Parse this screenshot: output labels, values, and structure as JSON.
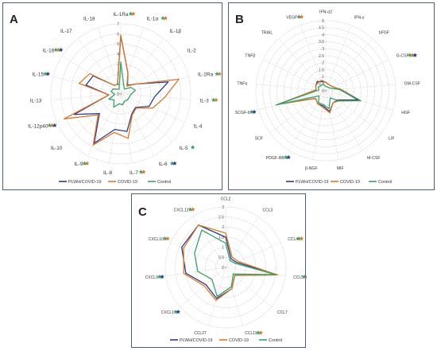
{
  "panels": [
    {
      "id": "A",
      "label": "A"
    },
    {
      "id": "B",
      "label": "B"
    },
    {
      "id": "C",
      "label": "C"
    }
  ],
  "colors": {
    "PLWH/COVID-19": "#2e3a87",
    "COVID-19": "#d77a2b",
    "Control": "#3aa06a",
    "grid": "#c8c8c8",
    "star_blue": "#1f3b8c",
    "star_orange": "#d77a2b",
    "star_green": "#3aa06a"
  },
  "chart_data": [
    {
      "type": "radar",
      "panel": "A",
      "categories": [
        "IL-1Ra",
        "IL-1α",
        "IL-1β",
        "IL-2",
        "IL-2Ra",
        "IL-3",
        "IL-4",
        "IL-5",
        "IL-6",
        "IL-7",
        "IL-8",
        "IL-9",
        "IL-10",
        "IL-12p40",
        "IL-13",
        "IL-15",
        "IL-16",
        "IL-17",
        "IL-18"
      ],
      "rticks": [
        "0",
        "1",
        "2",
        "3",
        "4",
        "5",
        "6",
        "7"
      ],
      "rlim": [
        0,
        7
      ],
      "series": [
        {
          "name": "PLWH/COVID-19",
          "values": [
            5.8,
            2.2,
            1.1,
            1.8,
            4.9,
            3.4,
            3.1,
            2.0,
            2.3,
            3.8,
            3.6,
            5.6,
            2.9,
            5.1,
            1.2,
            3.6,
            3.3,
            1.1,
            1.0
          ]
        },
        {
          "name": "COVID-19",
          "values": [
            5.9,
            2.2,
            1.0,
            1.8,
            6.0,
            4.4,
            3.5,
            2.1,
            2.4,
            4.5,
            3.9,
            5.8,
            3.1,
            6.2,
            1.2,
            4.3,
            3.7,
            1.1,
            1.0
          ]
        },
        {
          "name": "Control",
          "values": [
            3.2,
            0.9,
            0.6,
            1.2,
            1.5,
            1.0,
            0.9,
            0.9,
            0.8,
            1.1,
            1.0,
            1.5,
            0.9,
            1.3,
            0.6,
            1.0,
            0.9,
            0.6,
            0.5
          ]
        }
      ],
      "stars": [
        {
          "category": "IL-1Ra",
          "colors": [
            "star_green",
            "star_orange"
          ]
        },
        {
          "category": "IL-1α",
          "colors": [
            "star_green",
            "star_orange"
          ]
        },
        {
          "category": "IL-2Ra",
          "colors": [
            "star_green",
            "star_orange"
          ]
        },
        {
          "category": "IL-3",
          "colors": [
            "star_green",
            "star_orange"
          ]
        },
        {
          "category": "IL-5",
          "colors": [
            "star_green"
          ]
        },
        {
          "category": "IL-6",
          "colors": [
            "star_green",
            "star_blue"
          ]
        },
        {
          "category": "IL-7",
          "colors": [
            "star_green",
            "star_orange"
          ]
        },
        {
          "category": "IL-9",
          "colors": [
            "star_green",
            "star_orange"
          ]
        },
        {
          "category": "IL-12p40",
          "colors": [
            "star_green",
            "star_orange",
            "star_blue"
          ]
        },
        {
          "category": "IL-15",
          "colors": [
            "star_green",
            "star_blue"
          ]
        },
        {
          "category": "IL-16",
          "colors": [
            "star_green",
            "star_orange",
            "star_blue"
          ]
        }
      ],
      "legend_position": "bottom"
    },
    {
      "type": "radar",
      "panel": "B",
      "categories": [
        "IFN-α2",
        "IFN-γ",
        "bFGF",
        "G-CSF",
        "GM-CSF",
        "HGF",
        "LIF",
        "M-CSF",
        "MIF",
        "β-NGF",
        "PDGF-BB",
        "SCF",
        "SCGF-b",
        "TNFα",
        "TNFβ",
        "TRAIL",
        "VEGF"
      ],
      "rticks": [
        "0",
        "0.5",
        "1",
        "1.5",
        "2",
        "2.5",
        "3",
        "3.5",
        "4",
        "4.5",
        "5"
      ],
      "rlim": [
        0,
        5
      ],
      "series": [
        {
          "name": "PLWH/COVID-19",
          "values": [
            0.6,
            0.5,
            0.5,
            0.6,
            1.0,
            2.4,
            1.1,
            1.0,
            1.5,
            1.1,
            1.1,
            0.9,
            3.5,
            0.7,
            0.8,
            0.9,
            0.7
          ]
        },
        {
          "name": "COVID-19",
          "values": [
            0.6,
            0.5,
            0.5,
            0.6,
            1.1,
            2.6,
            1.2,
            1.0,
            1.6,
            1.2,
            1.1,
            0.9,
            3.6,
            0.7,
            0.8,
            0.8,
            0.8
          ]
        },
        {
          "name": "Control",
          "values": [
            0.3,
            0.3,
            0.3,
            0.4,
            1.0,
            2.6,
            1.2,
            0.6,
            1.3,
            1.0,
            1.0,
            0.6,
            3.7,
            0.5,
            0.6,
            0.5,
            0.5
          ]
        }
      ],
      "stars": [
        {
          "category": "G-CSF",
          "colors": [
            "star_green",
            "star_orange",
            "star_blue"
          ]
        },
        {
          "category": "PDGF-BB",
          "colors": [
            "star_green",
            "star_blue"
          ]
        },
        {
          "category": "SCGF-b",
          "colors": [
            "star_green",
            "star_blue"
          ]
        },
        {
          "category": "VEGF",
          "colors": [
            "star_green",
            "star_orange"
          ]
        }
      ],
      "legend_position": "bottom"
    },
    {
      "type": "radar",
      "panel": "C",
      "categories": [
        "CCL2",
        "CCL3",
        "CCL4",
        "CCL5",
        "CCL7",
        "CCL11",
        "CCL27",
        "CXCL1",
        "CXCL9",
        "CXCL10",
        "CXCL12"
      ],
      "rticks": [
        "0",
        "0.5",
        "1",
        "1.5",
        "2",
        "2.5",
        "3"
      ],
      "rlim": [
        0,
        3
      ],
      "series": [
        {
          "name": "PLWH/COVID-19",
          "values": [
            1.5,
            0.5,
            0.6,
            2.6,
            0.6,
            1.1,
            1.6,
            1.3,
            2.0,
            2.4,
            2.5
          ]
        },
        {
          "name": "COVID-19",
          "values": [
            1.7,
            0.6,
            0.7,
            2.6,
            0.6,
            1.1,
            1.7,
            1.4,
            2.1,
            2.3,
            2.5
          ]
        },
        {
          "name": "Control",
          "values": [
            1.2,
            0.4,
            0.5,
            2.5,
            0.5,
            1.0,
            1.5,
            0.9,
            1.4,
            1.7,
            2.2
          ]
        }
      ],
      "stars": [
        {
          "category": "CCL4",
          "colors": [
            "star_green",
            "star_orange"
          ]
        },
        {
          "category": "CCL5",
          "colors": [
            "star_green",
            "star_orange"
          ]
        },
        {
          "category": "CCL11",
          "colors": [
            "star_green",
            "star_orange"
          ]
        },
        {
          "category": "CXCL1",
          "colors": [
            "star_green",
            "star_blue"
          ]
        },
        {
          "category": "CXCL9",
          "colors": [
            "star_green",
            "star_blue"
          ]
        },
        {
          "category": "CXCL10",
          "colors": [
            "star_green",
            "star_orange"
          ]
        },
        {
          "category": "CXCL12",
          "colors": [
            "star_green",
            "star_orange"
          ]
        }
      ],
      "legend_position": "bottom"
    }
  ]
}
